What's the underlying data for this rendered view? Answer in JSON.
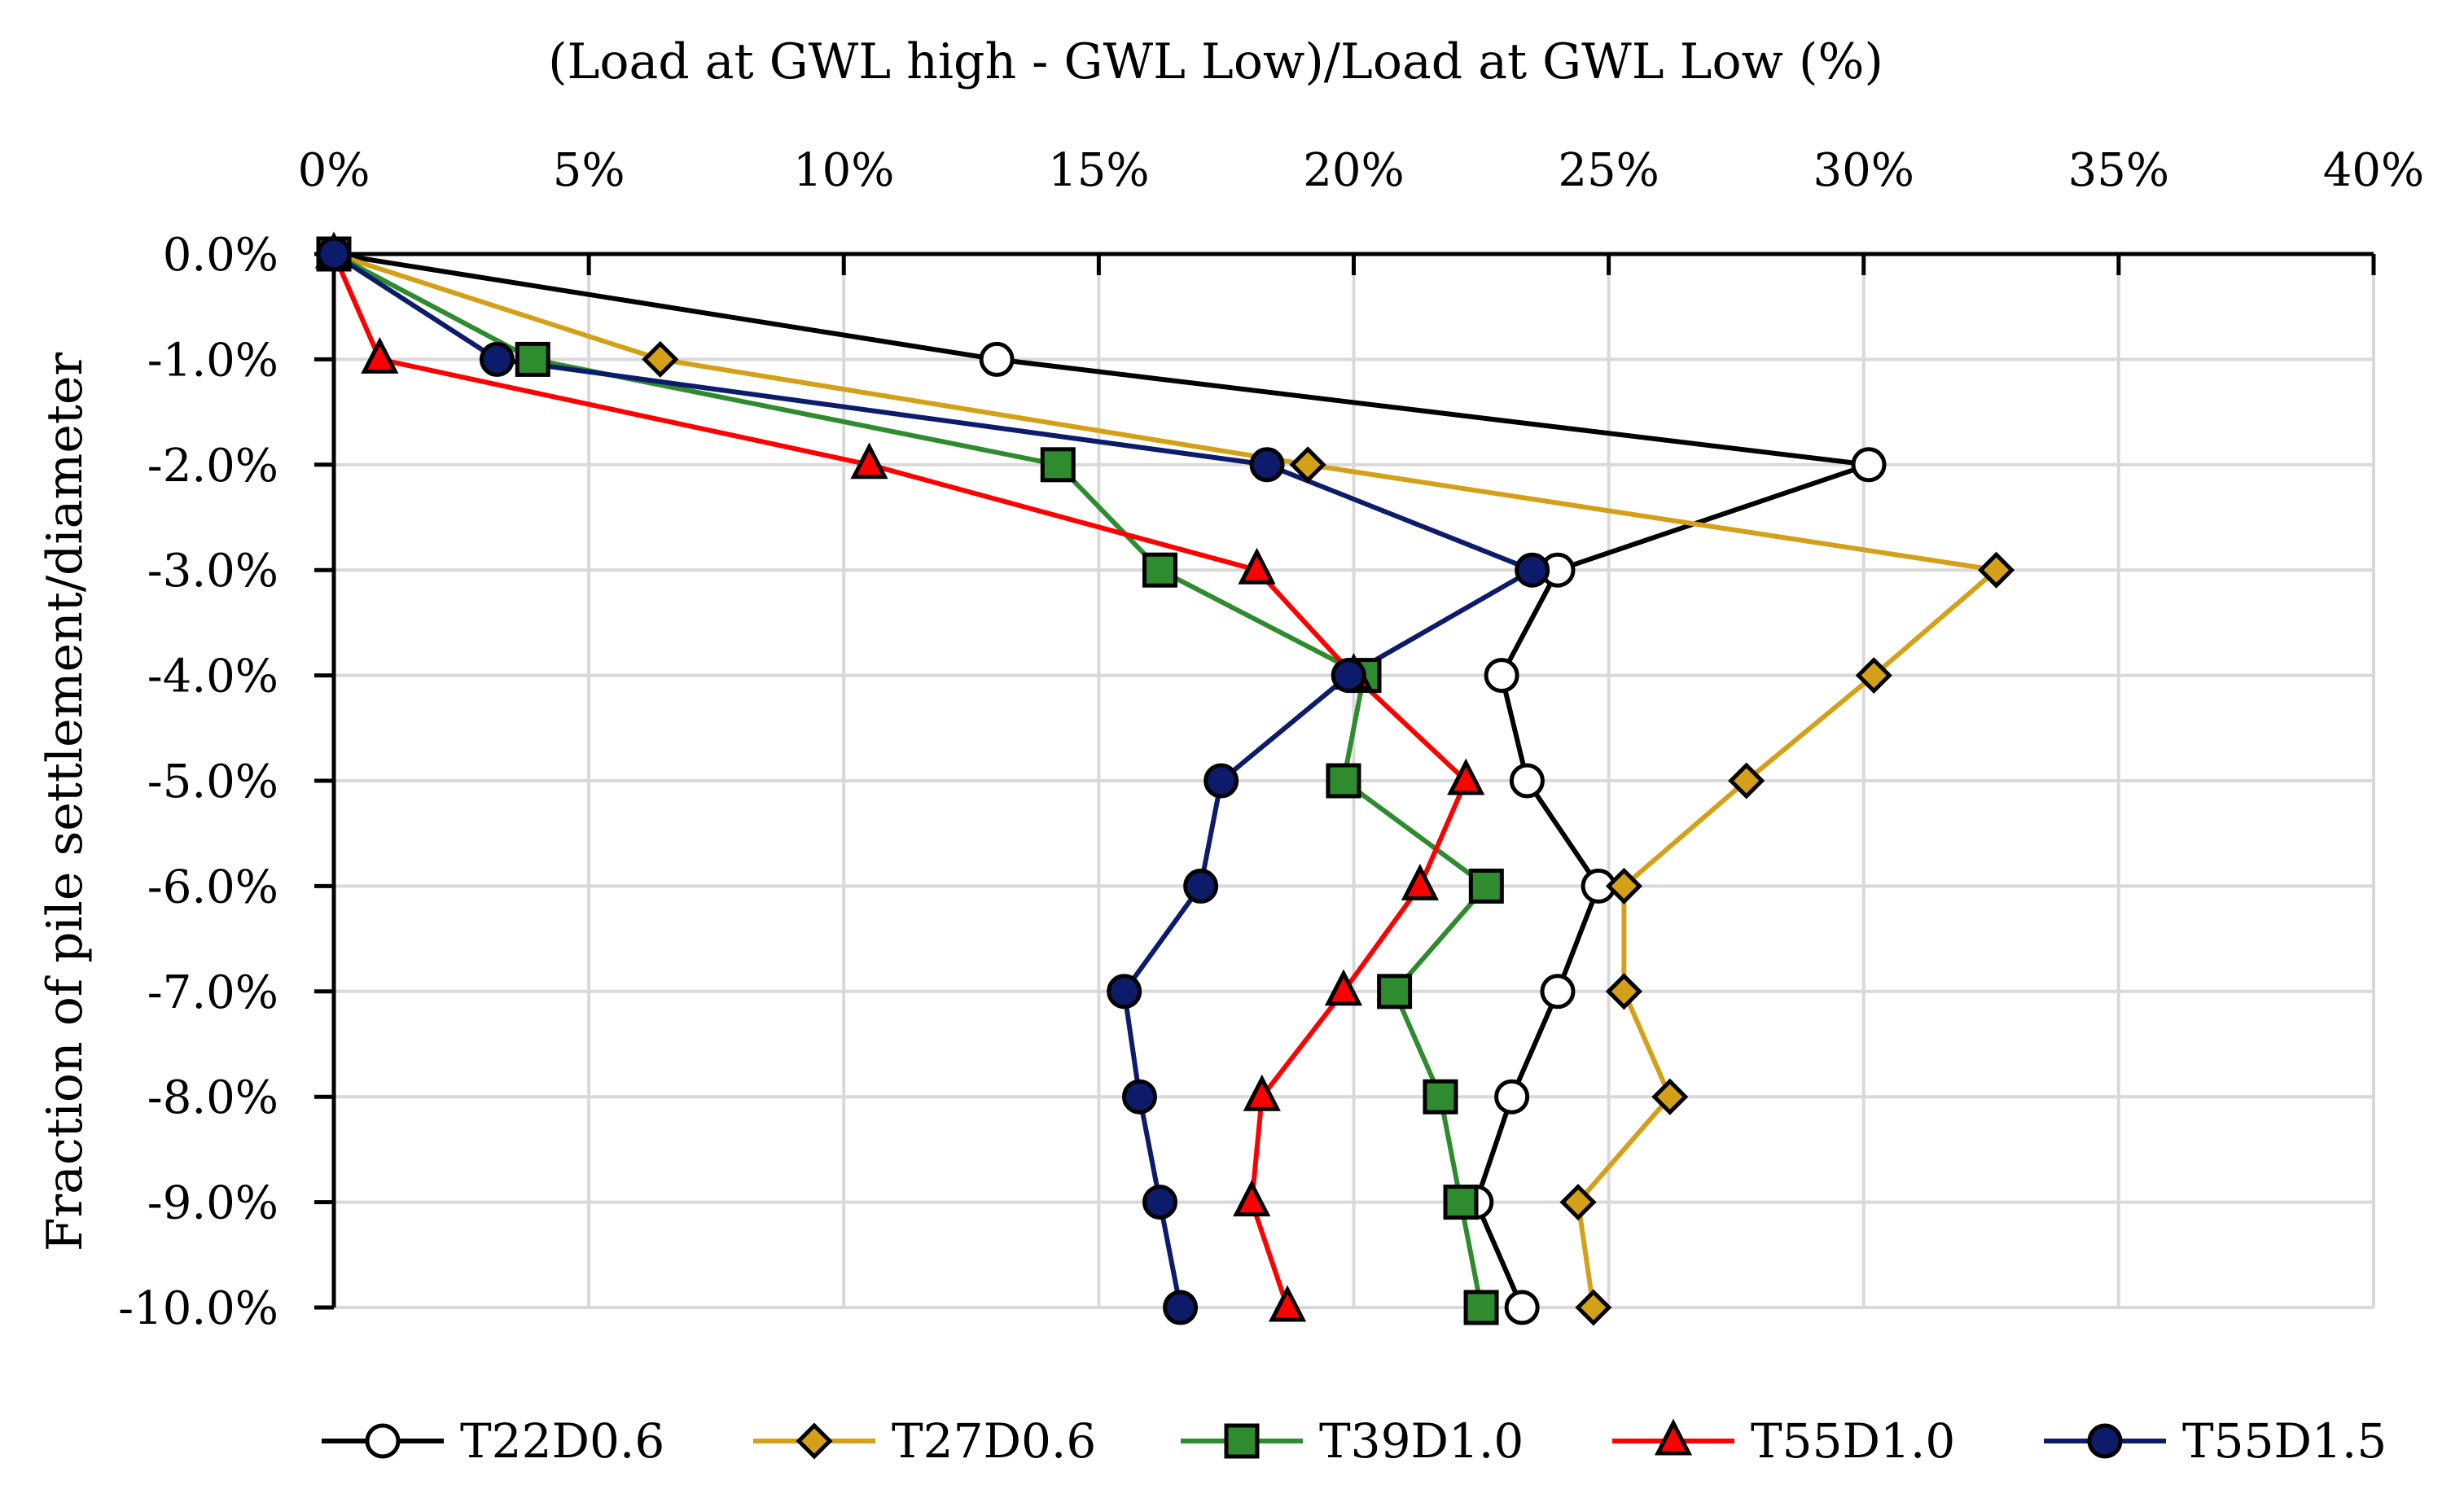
{
  "chart_data": {
    "type": "line",
    "title": "(Load at GWL high - GWL Low)/Load at GWL Low (%)",
    "xlabel": "(Load at GWL high - GWL Low)/Load at GWL Low (%)",
    "ylabel": "Fraction of pile settlement/diameter",
    "x_axis_position": "top",
    "xlim": [
      0,
      40
    ],
    "ylim": [
      -10,
      0
    ],
    "x_ticks": [
      0,
      5,
      10,
      15,
      20,
      25,
      30,
      35,
      40
    ],
    "x_tick_labels": [
      "0%",
      "5%",
      "10%",
      "15%",
      "20%",
      "25%",
      "30%",
      "35%",
      "40%"
    ],
    "y_ticks": [
      0,
      -1,
      -2,
      -3,
      -4,
      -5,
      -6,
      -7,
      -8,
      -9,
      -10
    ],
    "y_tick_labels": [
      "0.0%",
      "-1.0%",
      "-2.0%",
      "-3.0%",
      "-4.0%",
      "-5.0%",
      "-6.0%",
      "-7.0%",
      "-8.0%",
      "-9.0%",
      "-10.0%"
    ],
    "grid": true,
    "legend_position": "bottom",
    "y": [
      0,
      -1,
      -2,
      -3,
      -4,
      -5,
      -6,
      -7,
      -8,
      -9,
      -10
    ],
    "series": [
      {
        "name": "T22D0.6",
        "color": "#000000",
        "marker": "circle-open",
        "x": [
          0,
          13.0,
          30.1,
          24.0,
          22.9,
          23.4,
          24.8,
          24.0,
          23.1,
          22.4,
          23.3
        ]
      },
      {
        "name": "T27D0.6",
        "color": "#D4A017",
        "marker": "diamond",
        "x": [
          0,
          6.4,
          19.1,
          32.6,
          30.2,
          27.7,
          25.3,
          25.3,
          26.2,
          24.4,
          24.7
        ]
      },
      {
        "name": "T39D1.0",
        "color": "#2E8B2E",
        "marker": "square",
        "x": [
          0,
          3.9,
          14.2,
          16.2,
          20.2,
          19.8,
          22.6,
          20.8,
          21.7,
          22.1,
          22.5
        ]
      },
      {
        "name": "T55D1.0",
        "color": "#FF0000",
        "marker": "triangle",
        "x": [
          0,
          0.9,
          10.5,
          18.1,
          20.0,
          22.2,
          21.3,
          19.8,
          18.2,
          18.0,
          18.7
        ]
      },
      {
        "name": "T55D1.5",
        "color": "#0D1B6B",
        "marker": "circle-filled",
        "x": [
          0,
          3.2,
          18.3,
          23.5,
          19.9,
          17.4,
          17.0,
          15.5,
          15.8,
          16.2,
          16.6
        ]
      }
    ]
  }
}
